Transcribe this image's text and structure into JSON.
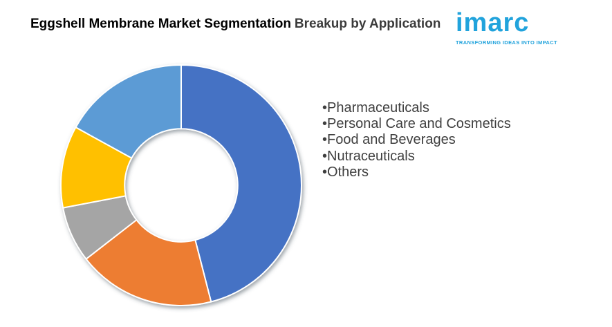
{
  "page": {
    "background": "#ffffff"
  },
  "title": {
    "primary": "Eggshell Membrane Market Segmentation",
    "secondary": "Breakup by Application",
    "primary_color": "#000000",
    "secondary_color": "#3b3b3b"
  },
  "logo": {
    "wordmark": "imarc",
    "tagline": "TRANSFORMING IDEAS INTO IMPACT",
    "color": "#21a3dc"
  },
  "legend": {
    "bullet": "•",
    "text_color": "#3f3f3f",
    "items": [
      "Pharmaceuticals",
      "Personal Care and Cosmetics",
      "Food and Beverages",
      "Nutraceuticals",
      "Others"
    ]
  },
  "chart_data": {
    "type": "pie",
    "subtype": "donut",
    "title": "Eggshell Membrane Market Segmentation Breakup by Application",
    "categories": [
      "Pharmaceuticals",
      "Personal Care and Cosmetics",
      "Food and Beverages",
      "Nutraceuticals",
      "Others"
    ],
    "values": [
      46,
      18.5,
      7.5,
      11,
      17
    ],
    "values_note": "percent of whole, estimated from arc angles; no data labels shown in chart",
    "colors": [
      "#4472C4",
      "#ED7D31",
      "#A5A5A5",
      "#FFC000",
      "#5B9BD5"
    ],
    "slice_border_color": "#ffffff",
    "start_angle_deg": 0,
    "direction": "clockwise",
    "inner_radius_ratio": 0.47,
    "legend_position": "right",
    "shadow": true
  }
}
